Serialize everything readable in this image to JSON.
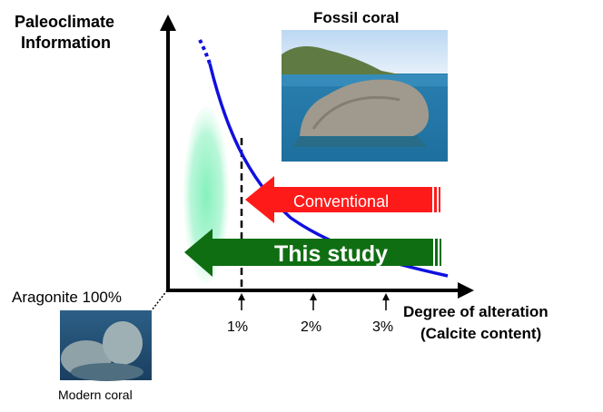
{
  "labels": {
    "y_axis": [
      "Paleoclimate",
      "Information"
    ],
    "x_axis": [
      "Degree of alteration",
      "(Calcite content)"
    ],
    "origin": "Aragonite 100%",
    "fossil_caption": "Fossil coral",
    "modern_caption": "Modern coral",
    "conventional": "Conventional",
    "this_study": "This study",
    "ticks": [
      "1%",
      "2%",
      "3%"
    ]
  },
  "colors": {
    "axis": "#000000",
    "curve": "#1010e0",
    "conventional_arrow": "#ff1a1a",
    "this_study_arrow": "#0f6e12",
    "ellipse": "#8ff0c0"
  },
  "icons": [
    "up-arrow-icon"
  ]
}
